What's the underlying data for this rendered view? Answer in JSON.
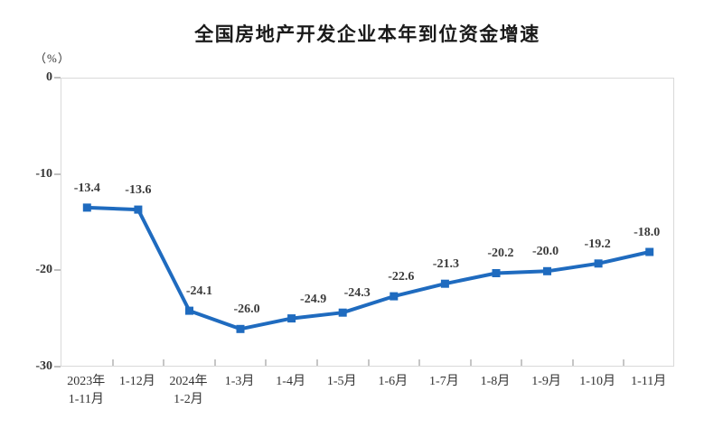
{
  "chart_data": {
    "type": "line",
    "title": "全国房地产开发企业本年到位资金增速",
    "unit_label": "（%）",
    "categories": [
      [
        "2023年",
        "1-11月"
      ],
      [
        "1-12月"
      ],
      [
        "2024年",
        "1-2月"
      ],
      [
        "1-3月"
      ],
      [
        "1-4月"
      ],
      [
        "1-5月"
      ],
      [
        "1-6月"
      ],
      [
        "1-7月"
      ],
      [
        "1-8月"
      ],
      [
        "1-9月"
      ],
      [
        "1-10月"
      ],
      [
        "1-11月"
      ]
    ],
    "values": [
      -13.4,
      -13.6,
      -24.1,
      -26.0,
      -24.9,
      -24.3,
      -22.6,
      -21.3,
      -20.2,
      -20.0,
      -19.2,
      -18.0
    ],
    "data_labels": [
      "-13.4",
      "-13.6",
      "-24.1",
      "-26.0",
      "-24.9",
      "-24.3",
      "-22.6",
      "-21.3",
      "-20.2",
      "-20.0",
      "-19.2",
      "-18.0"
    ],
    "yticks": [
      {
        "value": 0,
        "label": "0"
      },
      {
        "value": -10,
        "label": "-10"
      },
      {
        "value": -20,
        "label": "-20"
      },
      {
        "value": -30,
        "label": "-30"
      }
    ],
    "ylim": [
      -30,
      0
    ],
    "line_color": "#1f6bbf",
    "marker": "square",
    "grid": false,
    "legend": "none"
  }
}
